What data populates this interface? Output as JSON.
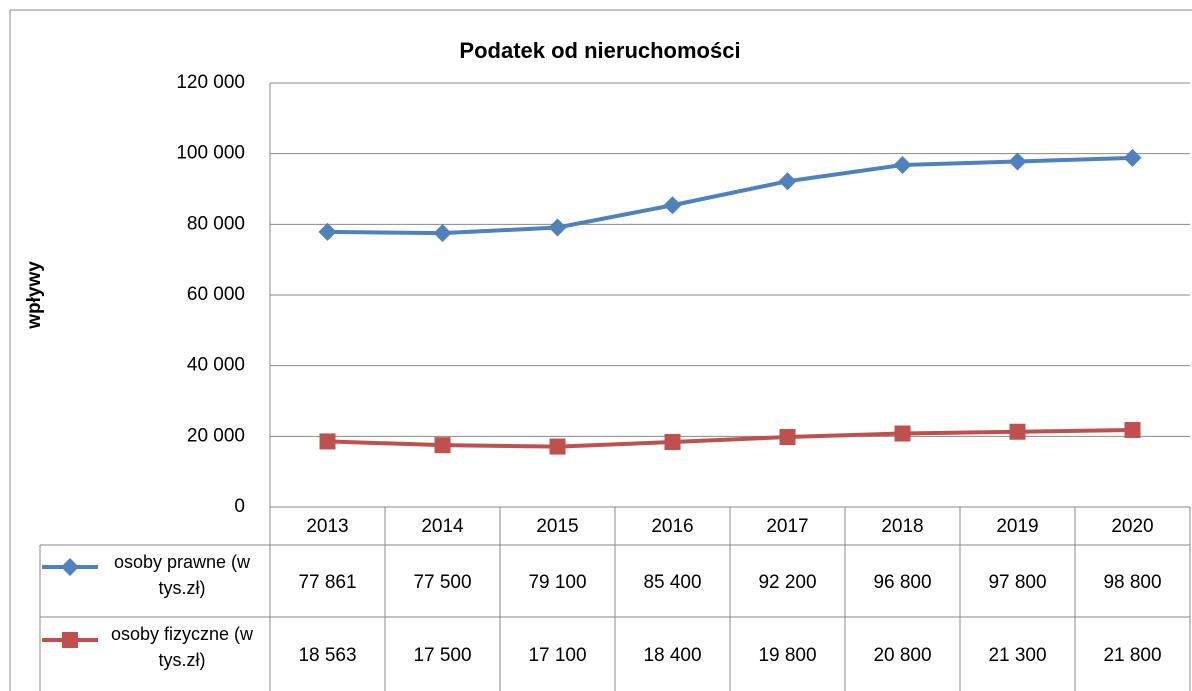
{
  "chart_data": {
    "type": "line",
    "title": "Podatek od nieruchomości",
    "y_label": "wpływy",
    "categories": [
      "2013",
      "2014",
      "2015",
      "2016",
      "2017",
      "2018",
      "2019",
      "2020"
    ],
    "series": [
      {
        "name": "osoby prawne (w tys.zł)",
        "color": "#4f81bd",
        "marker": "diamond",
        "values": [
          77861,
          77500,
          79100,
          85400,
          92200,
          96800,
          97800,
          98800
        ],
        "value_labels": [
          "77 861",
          "77 500",
          "79 100",
          "85 400",
          "92 200",
          "96 800",
          "97 800",
          "98 800"
        ]
      },
      {
        "name": "osoby fizyczne (w tys.zł)",
        "color": "#c0504d",
        "marker": "square",
        "values": [
          18563,
          17500,
          17100,
          18400,
          19800,
          20800,
          21300,
          21800
        ],
        "value_labels": [
          "18 563",
          "17 500",
          "17 100",
          "18 400",
          "19 800",
          "20 800",
          "21 300",
          "21 800"
        ]
      }
    ],
    "ylim": [
      0,
      120000
    ],
    "yticks": [
      0,
      {
        "value": 20000,
        "label": "20 000"
      },
      {
        "value": 40000,
        "label": "40 000"
      },
      {
        "value": 60000,
        "label": "60 000"
      },
      {
        "value": 80000,
        "label": "80 000"
      },
      {
        "value": 100000,
        "label": "100 000"
      },
      {
        "value": 120000,
        "label": "120 000"
      }
    ],
    "grid": true
  }
}
